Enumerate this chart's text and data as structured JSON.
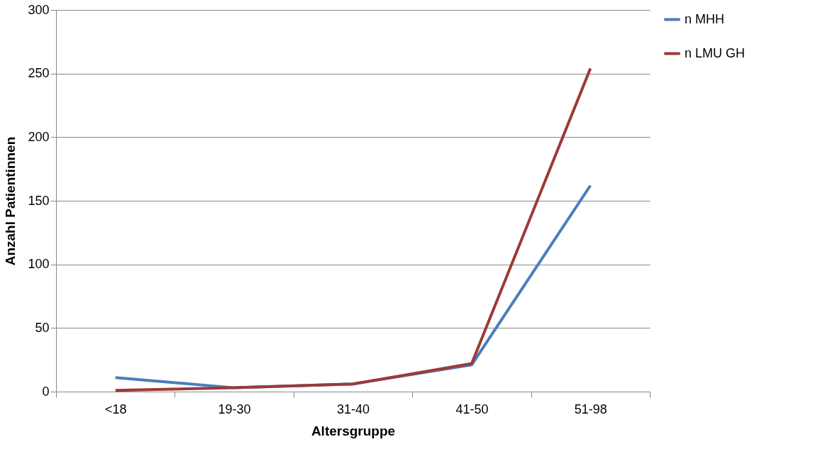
{
  "chart_data": {
    "type": "line",
    "xlabel": "Altersgruppe",
    "ylabel": "Anzahl Patientinnen",
    "categories": [
      "<18",
      "19-30",
      "31-40",
      "41-50",
      "51-98"
    ],
    "series": [
      {
        "name": "n MHH",
        "color": "#4a7ebb",
        "values": [
          11,
          3,
          6,
          21,
          162
        ]
      },
      {
        "name": "n LMU GH",
        "color": "#9b3a38",
        "values": [
          1,
          3,
          6,
          22,
          254
        ]
      }
    ],
    "ylim": [
      0,
      300
    ],
    "yticks": [
      0,
      50,
      100,
      150,
      200,
      250,
      300
    ],
    "grid": "y",
    "legend": "right",
    "marker": "none",
    "line_style": "solid"
  }
}
